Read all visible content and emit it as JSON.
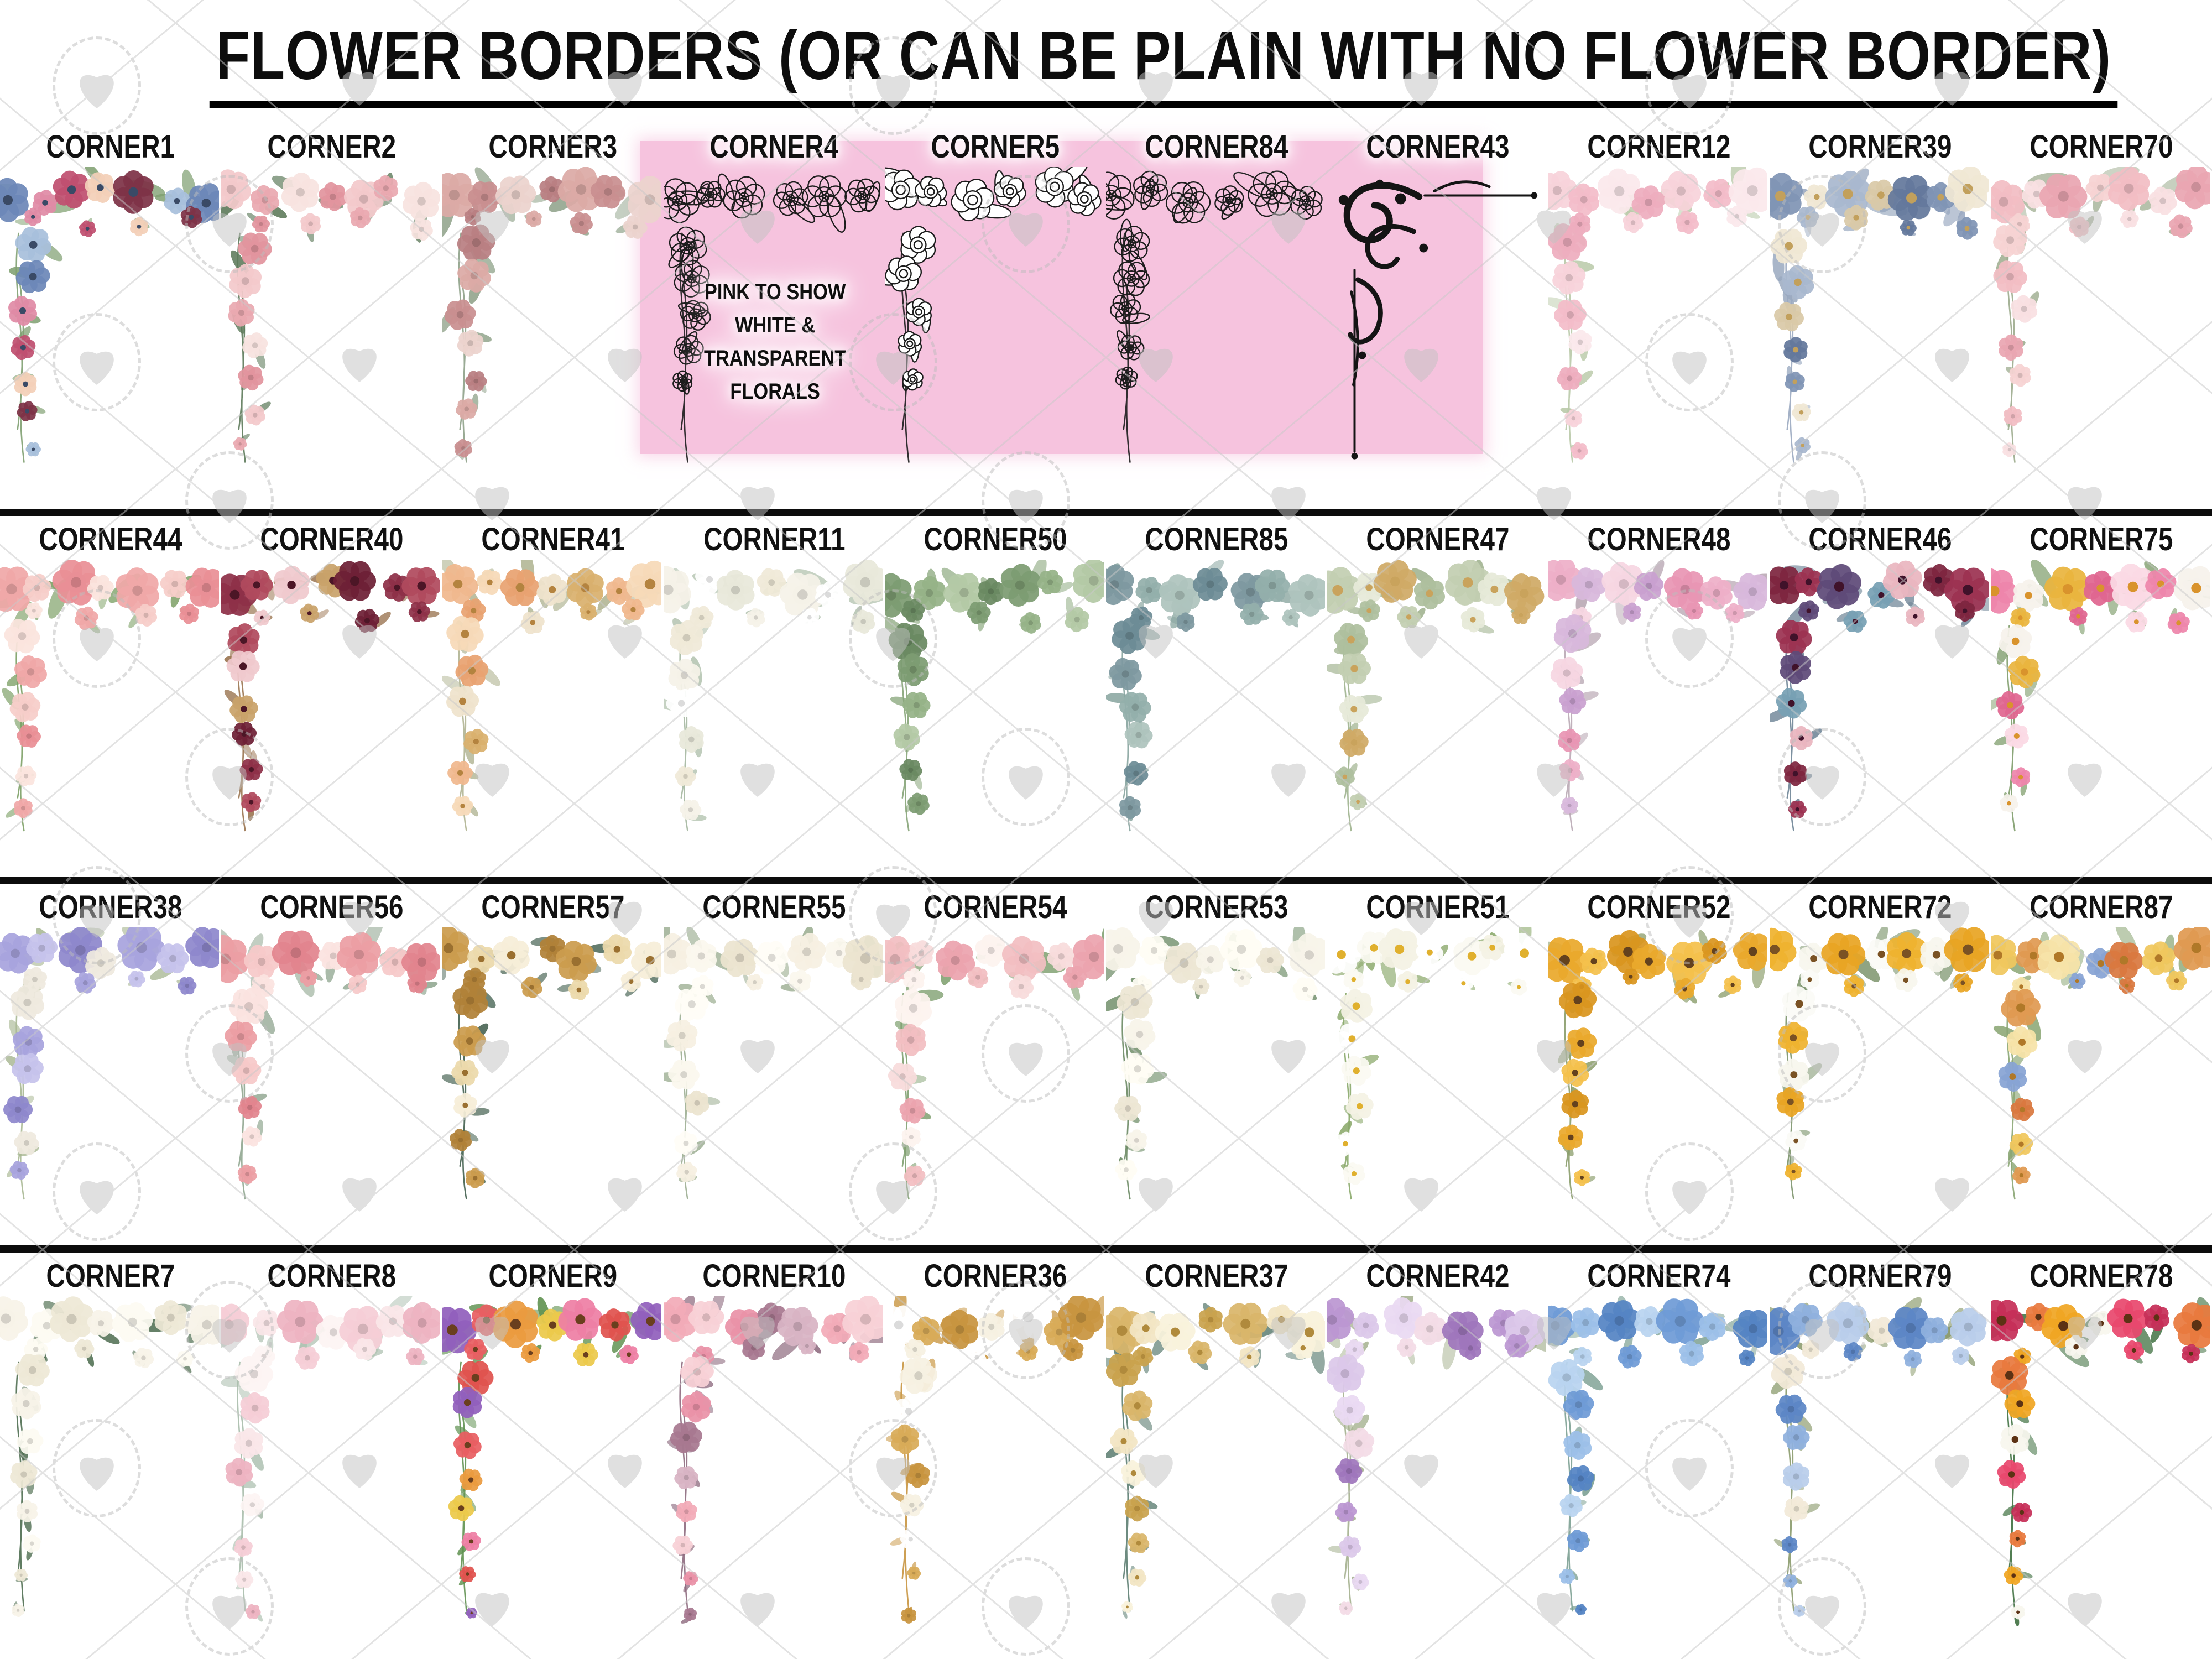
{
  "title": "FLOWER BORDERS (OR CAN BE PLAIN WITH NO FLOWER BORDER)",
  "pink_note": {
    "text": "PINK TO SHOW WHITE & TRANSPARENT FLORALS",
    "background_color": "#f6c3de"
  },
  "watermark": {
    "shape": "heart-in-circle-lattice",
    "color": "#c2c2c2"
  },
  "rows": [
    {
      "items": [
        {
          "label": "CORNER1",
          "style": "floral",
          "palette": [
            "#6d88b8",
            "#e08ba6",
            "#c05070",
            "#f3d0b8",
            "#7e3347",
            "#a8c0dc"
          ],
          "leaf": "#7fa071",
          "center": "#3a4a66"
        },
        {
          "label": "CORNER2",
          "style": "floral",
          "palette": [
            "#f3c9cb",
            "#eaa9b0",
            "#f8e3e0",
            "#e2949e"
          ],
          "leaf": "#5d7a5a"
        },
        {
          "label": "CORNER3",
          "style": "floral",
          "palette": [
            "#dcaaa6",
            "#c98f90",
            "#ecd3cd",
            "#b97f82"
          ],
          "leaf": "#8ea188"
        },
        {
          "label": "CORNER4",
          "style": "lineart",
          "on_pink": true,
          "palette": []
        },
        {
          "label": "CORNER5",
          "style": "lineart-white",
          "on_pink": true,
          "palette": []
        },
        {
          "label": "CORNER84",
          "style": "lineart",
          "on_pink": true,
          "palette": []
        },
        {
          "label": "CORNER43",
          "style": "flourish",
          "on_pink": true,
          "palette": [
            "#141414"
          ]
        },
        {
          "label": "CORNER12",
          "style": "floral",
          "palette": [
            "#f7d3da",
            "#f3bcc9",
            "#fbe8ec",
            "#eeadbe"
          ],
          "leaf": "#b9c9a8"
        },
        {
          "label": "CORNER39",
          "style": "floral",
          "palette": [
            "#8095b5",
            "#f0e7d4",
            "#a9b8cf",
            "#d9c9a8",
            "#64789c"
          ],
          "leaf": "#9aa9c0",
          "center": "#c2a05c"
        },
        {
          "label": "CORNER70",
          "style": "floral",
          "palette": [
            "#f2bdc4",
            "#f9e0e2",
            "#eaa6b2",
            "#f6d3d3"
          ],
          "leaf": "#9cab8d"
        }
      ]
    },
    {
      "items": [
        {
          "label": "CORNER44",
          "style": "floral",
          "palette": [
            "#f0a8a8",
            "#f6cdc9",
            "#e98f96",
            "#fbe4de"
          ],
          "leaf": "#7ca065"
        },
        {
          "label": "CORNER40",
          "style": "floral",
          "palette": [
            "#8e3048",
            "#b04a5e",
            "#f0c9ce",
            "#c9a36a",
            "#6e2036"
          ],
          "leaf": "#9a7450",
          "center": "#4c1626"
        },
        {
          "label": "CORNER41",
          "style": "floral",
          "palette": [
            "#f0b88e",
            "#f6d9b8",
            "#e8a271",
            "#efe3cc",
            "#d9b06e"
          ],
          "leaf": "#b0b492",
          "center": "#b4833f"
        },
        {
          "label": "CORNER11",
          "style": "floral",
          "palette": [
            "#f5f2e8",
            "#ffffff",
            "#e8e8da",
            "#f0ead8"
          ],
          "leaf": "#a4b7a0"
        },
        {
          "label": "CORNER50",
          "style": "floral",
          "palette": [
            "#7d9c72",
            "#96b388",
            "#b4c9a6",
            "#6a8a62"
          ],
          "leaf": "#86a478"
        },
        {
          "label": "CORNER85",
          "style": "floral",
          "palette": [
            "#7e99a0",
            "#93afab",
            "#aec4bd",
            "#6d8c96"
          ],
          "leaf": "#87a49e"
        },
        {
          "label": "CORNER47",
          "style": "floral",
          "palette": [
            "#c3cfb2",
            "#e6ead8",
            "#d0aa66",
            "#aebf9e"
          ],
          "leaf": "#9fb28e",
          "center": "#c9a35c"
        },
        {
          "label": "CORNER48",
          "style": "floral",
          "palette": [
            "#eeafc8",
            "#d8b8dc",
            "#f6d6e2",
            "#c9a0d0",
            "#e896b4"
          ],
          "leaf": "#b9a8b4"
        },
        {
          "label": "CORNER46",
          "style": "floral",
          "palette": [
            "#7e2640",
            "#9c3352",
            "#5f4a78",
            "#77a0b4",
            "#eab6c0"
          ],
          "leaf": "#6e8496",
          "center": "#40122a"
        },
        {
          "label": "CORNER75",
          "style": "floral",
          "palette": [
            "#ee85ab",
            "#f6f2ec",
            "#eab53e",
            "#e06690",
            "#fbd9e4"
          ],
          "leaf": "#7e9c6a",
          "center": "#d9932c"
        }
      ]
    },
    {
      "items": [
        {
          "label": "CORNER38",
          "style": "floral",
          "palette": [
            "#a8a4de",
            "#c6c3ec",
            "#8e88cc",
            "#efeadf"
          ],
          "leaf": "#a9b894"
        },
        {
          "label": "CORNER56",
          "style": "floral",
          "palette": [
            "#ec9ea4",
            "#f6c9c9",
            "#e2848e",
            "#fbe3e0"
          ],
          "leaf": "#90a690"
        },
        {
          "label": "CORNER57",
          "style": "floral",
          "palette": [
            "#cb9c4e",
            "#ecd9ab",
            "#f6eed8",
            "#b08138"
          ],
          "leaf": "#43604f",
          "center": "#9a7030"
        },
        {
          "label": "CORNER55",
          "style": "floral",
          "palette": [
            "#f6f0e2",
            "#fbf7ee",
            "#ece4d0",
            "#fffdf6"
          ],
          "leaf": "#9cae92"
        },
        {
          "label": "CORNER54",
          "style": "floral",
          "palette": [
            "#f2bec2",
            "#f8dcdc",
            "#eca4ae",
            "#fdf3ef"
          ],
          "leaf": "#7fa070"
        },
        {
          "label": "CORNER53",
          "style": "floral",
          "palette": [
            "#f8f4ea",
            "#fffdf4",
            "#ede6d4"
          ],
          "leaf": "#6b8a64"
        },
        {
          "label": "CORNER51",
          "style": "floral",
          "palette": [
            "#ffffff",
            "#fbfaf2",
            "#f4f2e4"
          ],
          "leaf": "#8aa86a",
          "center": "#e0b02e"
        },
        {
          "label": "CORNER52",
          "style": "floral",
          "palette": [
            "#eaa92c",
            "#f4c14c",
            "#d9961f"
          ],
          "leaf": "#8a9c6a",
          "center": "#64421e"
        },
        {
          "label": "CORNER72",
          "style": "floral",
          "palette": [
            "#efb32f",
            "#f8f6ee",
            "#e8a524",
            "#fbfbf6"
          ],
          "leaf": "#7c946c",
          "center": "#7a5224"
        },
        {
          "label": "CORNER87",
          "style": "floral",
          "palette": [
            "#f0c75e",
            "#e09a52",
            "#f6e3a8",
            "#88a4d4",
            "#d97840"
          ],
          "leaf": "#8ba674",
          "center": "#b07828"
        }
      ]
    },
    {
      "items": [
        {
          "label": "CORNER7",
          "style": "floral",
          "palette": [
            "#f7f3e8",
            "#fdfbf2",
            "#eee8d6"
          ],
          "leaf": "#4f6e51"
        },
        {
          "label": "CORNER8",
          "style": "floral",
          "palette": [
            "#f5ced6",
            "#fae6e8",
            "#eeb4c2",
            "#fdf4f3"
          ],
          "leaf": "#a8bcab"
        },
        {
          "label": "CORNER9",
          "style": "floral",
          "palette": [
            "#9160bc",
            "#e85f62",
            "#eb9b3f",
            "#ecc94b",
            "#ee7fa5",
            "#e0534f"
          ],
          "leaf": "#5f9150",
          "center": "#6a3f1e"
        },
        {
          "label": "CORNER10",
          "style": "floral",
          "palette": [
            "#f2abb8",
            "#f8d1d6",
            "#ea92a8",
            "#a87890",
            "#d8b4c4"
          ],
          "leaf": "#8d6a7e"
        },
        {
          "label": "CORNER36",
          "style": "floral",
          "palette": [
            "#ffffff",
            "#d8ab58",
            "#c89540",
            "#f6f1e2"
          ],
          "leaf": "#c89540"
        },
        {
          "label": "CORNER37",
          "style": "floral",
          "palette": [
            "#d9b66a",
            "#f2e5c4",
            "#f9f2dc",
            "#c9a24e"
          ],
          "leaf": "#5d7e72",
          "center": "#b08a3c"
        },
        {
          "label": "CORNER42",
          "style": "floral",
          "palette": [
            "#bb97d2",
            "#dcc8ea",
            "#e9d9f2",
            "#f3dce6",
            "#9f76bc"
          ],
          "leaf": "#a4b08e"
        },
        {
          "label": "CORNER74",
          "style": "floral",
          "palette": [
            "#6f9bd6",
            "#9cc0e8",
            "#5584c4",
            "#b9d4f0"
          ],
          "leaf": "#7ca092"
        },
        {
          "label": "CORNER79",
          "style": "floral",
          "palette": [
            "#5d86c6",
            "#8fb0de",
            "#b9cdeb",
            "#f2ead8"
          ],
          "leaf": "#8a9a6c"
        },
        {
          "label": "CORNER78",
          "style": "floral",
          "palette": [
            "#c62f58",
            "#e87a3e",
            "#f0a623",
            "#f8f6ee",
            "#e8486e"
          ],
          "leaf": "#3f7040",
          "center": "#5c3214"
        }
      ]
    }
  ]
}
